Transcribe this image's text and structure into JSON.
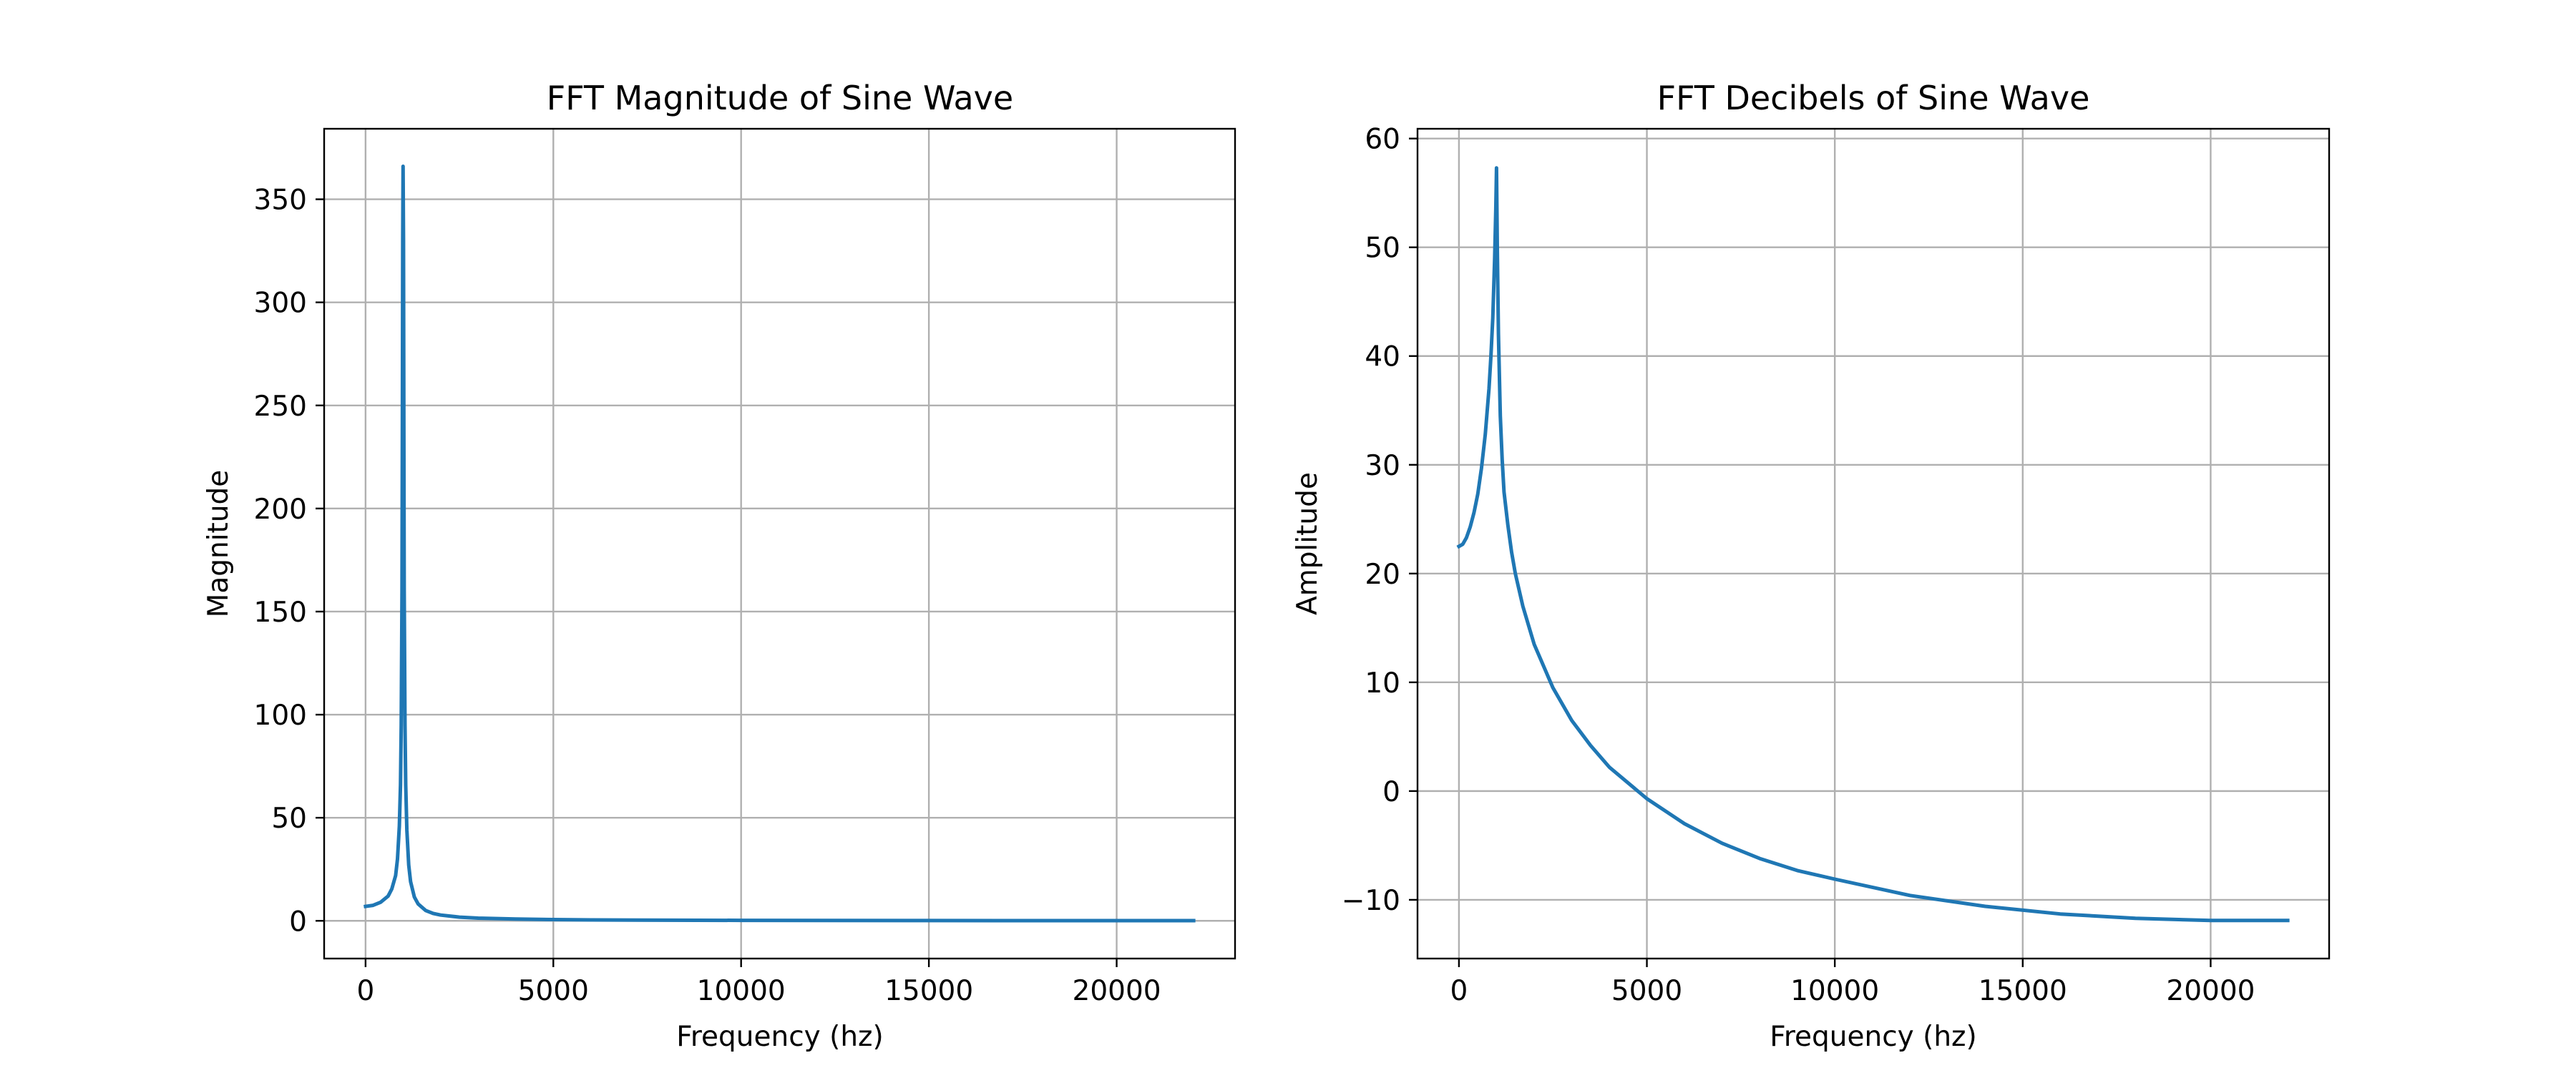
{
  "figure": {
    "background": "#ffffff"
  },
  "chart_data": [
    {
      "type": "line",
      "title": "FFT Magnitude of Sine Wave",
      "xlabel": "Frequency (hz)",
      "ylabel": "Magnitude",
      "xlim": [
        -1102.5,
        23152.5
      ],
      "ylim": [
        -18.3,
        384.2
      ],
      "xticks": [
        0,
        5000,
        10000,
        15000,
        20000
      ],
      "xtick_labels": [
        "0",
        "5000",
        "10000",
        "15000",
        "20000"
      ],
      "yticks": [
        0,
        50,
        100,
        150,
        200,
        250,
        300,
        350
      ],
      "ytick_labels": [
        "0",
        "50",
        "100",
        "150",
        "200",
        "250",
        "300",
        "350"
      ],
      "grid": true,
      "color": "#1f77b4",
      "series": [
        {
          "x": [
            0,
            200,
            400,
            600,
            700,
            800,
            850,
            900,
            930,
            950,
            970,
            980,
            990,
            1000,
            1010,
            1020,
            1030,
            1050,
            1070,
            1100,
            1150,
            1200,
            1300,
            1400,
            1600,
            1800,
            2000,
            2500,
            3000,
            4000,
            5000,
            6000,
            8000,
            10000,
            12000,
            15000,
            18000,
            20000,
            22050
          ],
          "y": [
            7.0,
            7.5,
            9.0,
            12.0,
            15.5,
            22.0,
            30.0,
            46.0,
            66.0,
            95.0,
            160.0,
            240.0,
            330.0,
            366.0,
            330.0,
            240.0,
            160.0,
            95.0,
            66.0,
            44.0,
            27.0,
            19.0,
            11.5,
            8.2,
            5.0,
            3.6,
            2.8,
            1.8,
            1.3,
            0.85,
            0.6,
            0.45,
            0.3,
            0.22,
            0.17,
            0.13,
            0.1,
            0.09,
            0.08
          ]
        }
      ]
    },
    {
      "type": "line",
      "title": "FFT Decibels of Sine Wave",
      "xlabel": "Frequency (hz)",
      "ylabel": "Amplitude",
      "xlim": [
        -1102.5,
        23152.5
      ],
      "ylim": [
        -15.4,
        60.9
      ],
      "xticks": [
        0,
        5000,
        10000,
        15000,
        20000
      ],
      "xtick_labels": [
        "0",
        "5000",
        "10000",
        "15000",
        "20000"
      ],
      "yticks": [
        -10,
        0,
        10,
        20,
        30,
        40,
        50,
        60
      ],
      "ytick_labels": [
        "−10",
        "0",
        "10",
        "20",
        "30",
        "40",
        "50",
        "60"
      ],
      "grid": true,
      "color": "#1f77b4",
      "series": [
        {
          "x": [
            0,
            100,
            200,
            300,
            400,
            500,
            600,
            700,
            800,
            850,
            900,
            950,
            980,
            1000,
            1020,
            1050,
            1100,
            1150,
            1200,
            1300,
            1400,
            1500,
            1700,
            2000,
            2500,
            3000,
            3500,
            4000,
            5000,
            6000,
            7000,
            8000,
            9000,
            10000,
            12000,
            14000,
            16000,
            18000,
            20000,
            22050
          ],
          "y": [
            22.5,
            22.7,
            23.3,
            24.3,
            25.6,
            27.3,
            29.7,
            32.8,
            37.0,
            40.0,
            43.5,
            49.0,
            53.5,
            57.3,
            50.0,
            42.0,
            34.5,
            30.5,
            27.5,
            24.5,
            22.0,
            20.0,
            17.0,
            13.5,
            9.5,
            6.5,
            4.2,
            2.2,
            -0.7,
            -3.0,
            -4.8,
            -6.2,
            -7.3,
            -8.1,
            -9.6,
            -10.6,
            -11.3,
            -11.7,
            -11.9,
            -11.9
          ]
        }
      ]
    }
  ]
}
